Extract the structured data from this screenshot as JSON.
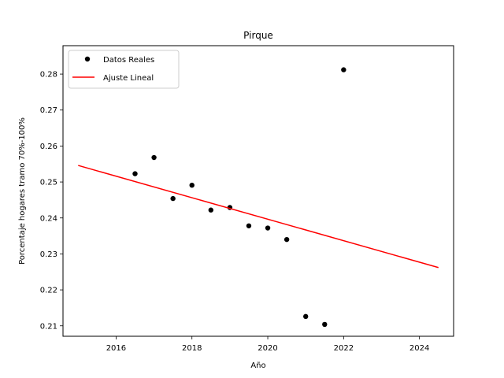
{
  "chart_data": {
    "type": "scatter",
    "title": "Pirque",
    "xlabel": "Año",
    "ylabel": "Porcentaje hogares tramo 70%-100%",
    "xlim": [
      2014.6,
      2024.9
    ],
    "ylim": [
      0.2071,
      0.2879
    ],
    "xticks": [
      2016,
      2018,
      2020,
      2022,
      2024
    ],
    "yticks": [
      0.21,
      0.22,
      0.23,
      0.24,
      0.25,
      0.26,
      0.27,
      0.28
    ],
    "grid": false,
    "legend_position": "top-left",
    "series": [
      {
        "name": "Datos Reales",
        "kind": "scatter",
        "color": "#000000",
        "points": [
          {
            "x": 2016.5,
            "y": 0.2523
          },
          {
            "x": 2017.0,
            "y": 0.2568
          },
          {
            "x": 2017.5,
            "y": 0.2454
          },
          {
            "x": 2018.0,
            "y": 0.2491
          },
          {
            "x": 2018.5,
            "y": 0.2422
          },
          {
            "x": 2019.0,
            "y": 0.2429
          },
          {
            "x": 2019.5,
            "y": 0.2378
          },
          {
            "x": 2020.0,
            "y": 0.2372
          },
          {
            "x": 2020.5,
            "y": 0.234
          },
          {
            "x": 2021.0,
            "y": 0.2126
          },
          {
            "x": 2021.5,
            "y": 0.2104
          },
          {
            "x": 2022.0,
            "y": 0.2812
          }
        ]
      },
      {
        "name": "Ajuste Lineal",
        "kind": "line",
        "color": "#ff0000",
        "points": [
          {
            "x": 2015.0,
            "y": 0.2546
          },
          {
            "x": 2024.5,
            "y": 0.2262
          }
        ]
      }
    ]
  }
}
